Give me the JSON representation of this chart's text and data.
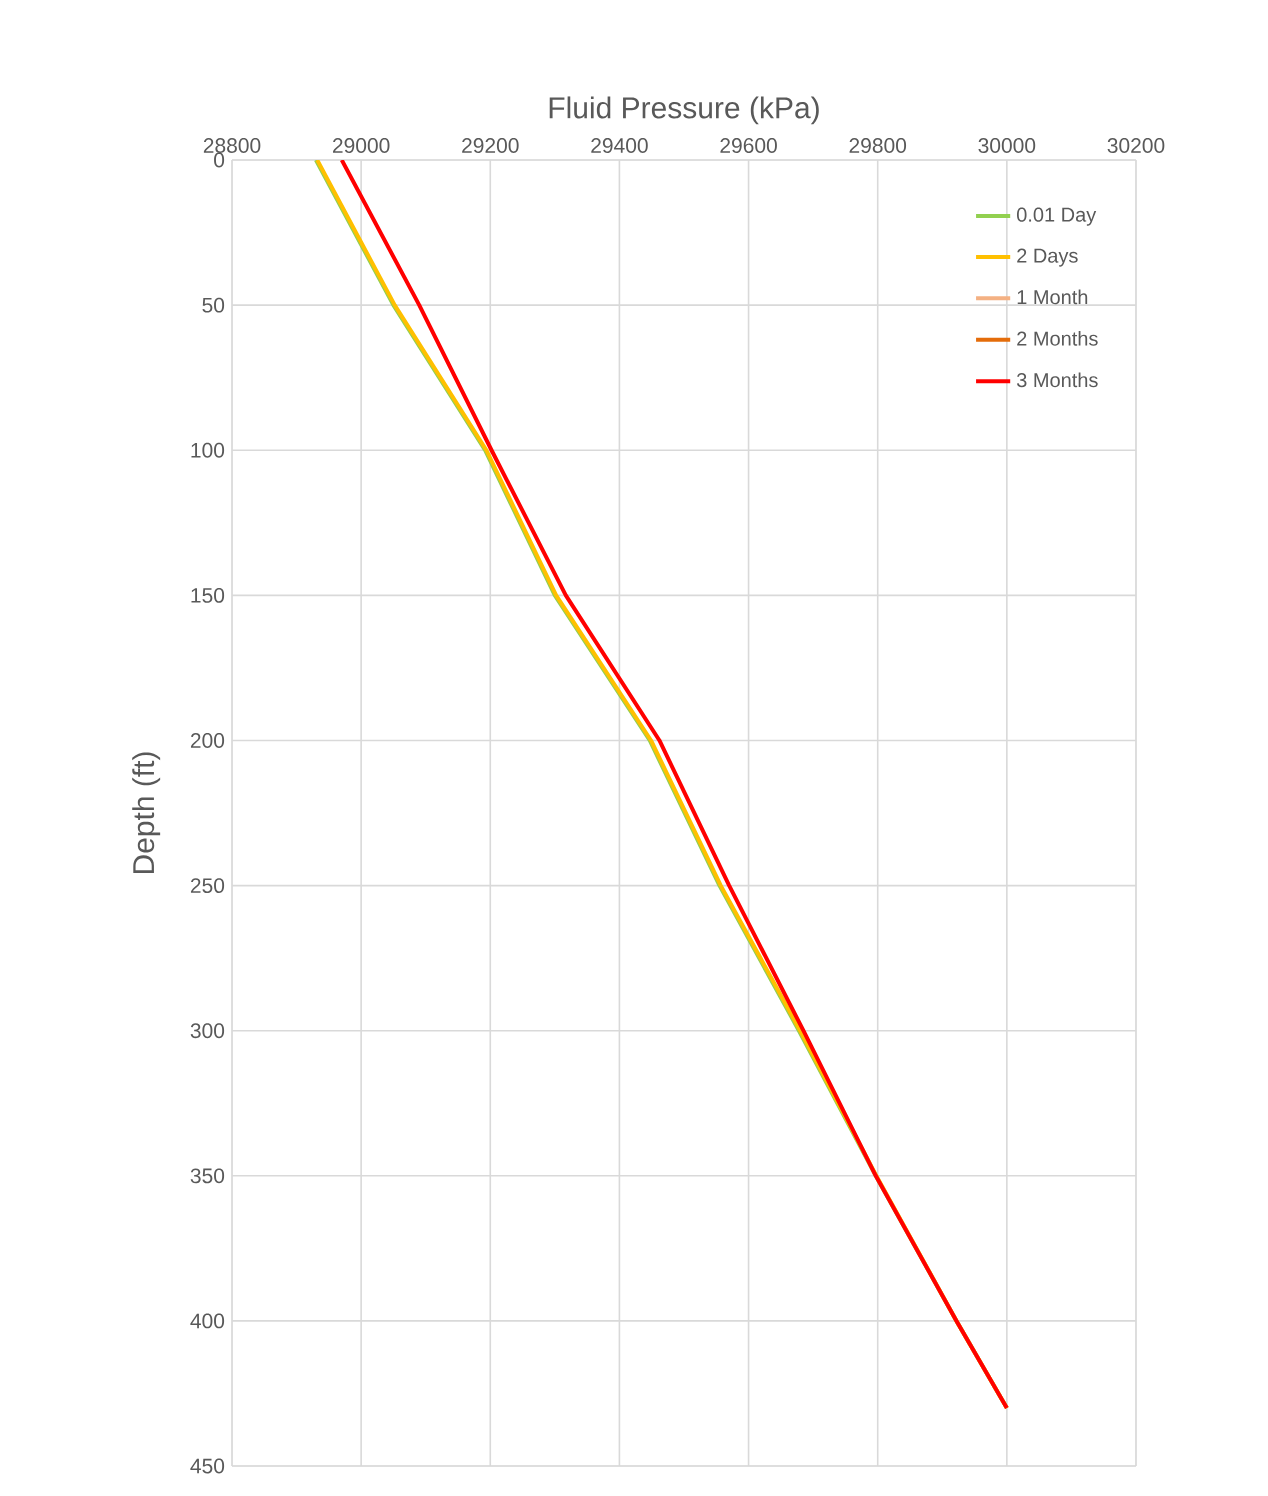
{
  "chart_data": {
    "type": "line",
    "xlabel": "Fluid Pressure (kPa)",
    "ylabel": "Depth (ft)",
    "xlim": [
      28800,
      30200
    ],
    "xticks": [
      28800,
      29000,
      29200,
      29400,
      29600,
      29800,
      30000,
      30200
    ],
    "ylim": [
      450,
      0
    ],
    "yticks": [
      0,
      50,
      100,
      150,
      200,
      250,
      300,
      350,
      400,
      450
    ],
    "grid": true,
    "legend": "top right",
    "series": [
      {
        "name": "0.01 Day",
        "color": "#92d050",
        "x": [
          28930,
          29050,
          29192,
          29300,
          29447,
          29555,
          29678,
          29797,
          29922,
          30000
        ],
        "values": [
          0,
          50,
          100,
          150,
          200,
          250,
          300,
          350,
          400,
          430
        ]
      },
      {
        "name": "2 Days",
        "color": "#ffc000",
        "x": [
          28932,
          29052,
          29194,
          29302,
          29449,
          29557,
          29680,
          29798,
          29922,
          30000
        ],
        "values": [
          0,
          50,
          100,
          150,
          200,
          250,
          300,
          350,
          400,
          430
        ]
      },
      {
        "name": "1 Month",
        "color": "#f4b183",
        "x": [
          null,
          null,
          null,
          null,
          null,
          null,
          null,
          null,
          null,
          null
        ],
        "values": [
          null,
          null,
          null,
          null,
          null,
          null,
          null,
          null,
          null,
          null
        ]
      },
      {
        "name": "2 Months",
        "color": "#e46c0a",
        "x": [
          null,
          null,
          null,
          null,
          null,
          null,
          null,
          null,
          null,
          null
        ],
        "values": [
          null,
          null,
          null,
          null,
          null,
          null,
          null,
          null,
          null,
          null
        ]
      },
      {
        "name": "3 Months",
        "color": "#ff0000",
        "x": [
          28970,
          29090,
          29202,
          29317,
          29462,
          29570,
          29685,
          29797,
          29922,
          30000
        ],
        "values": [
          0,
          50,
          100,
          150,
          200,
          250,
          300,
          350,
          400,
          430
        ]
      }
    ]
  }
}
